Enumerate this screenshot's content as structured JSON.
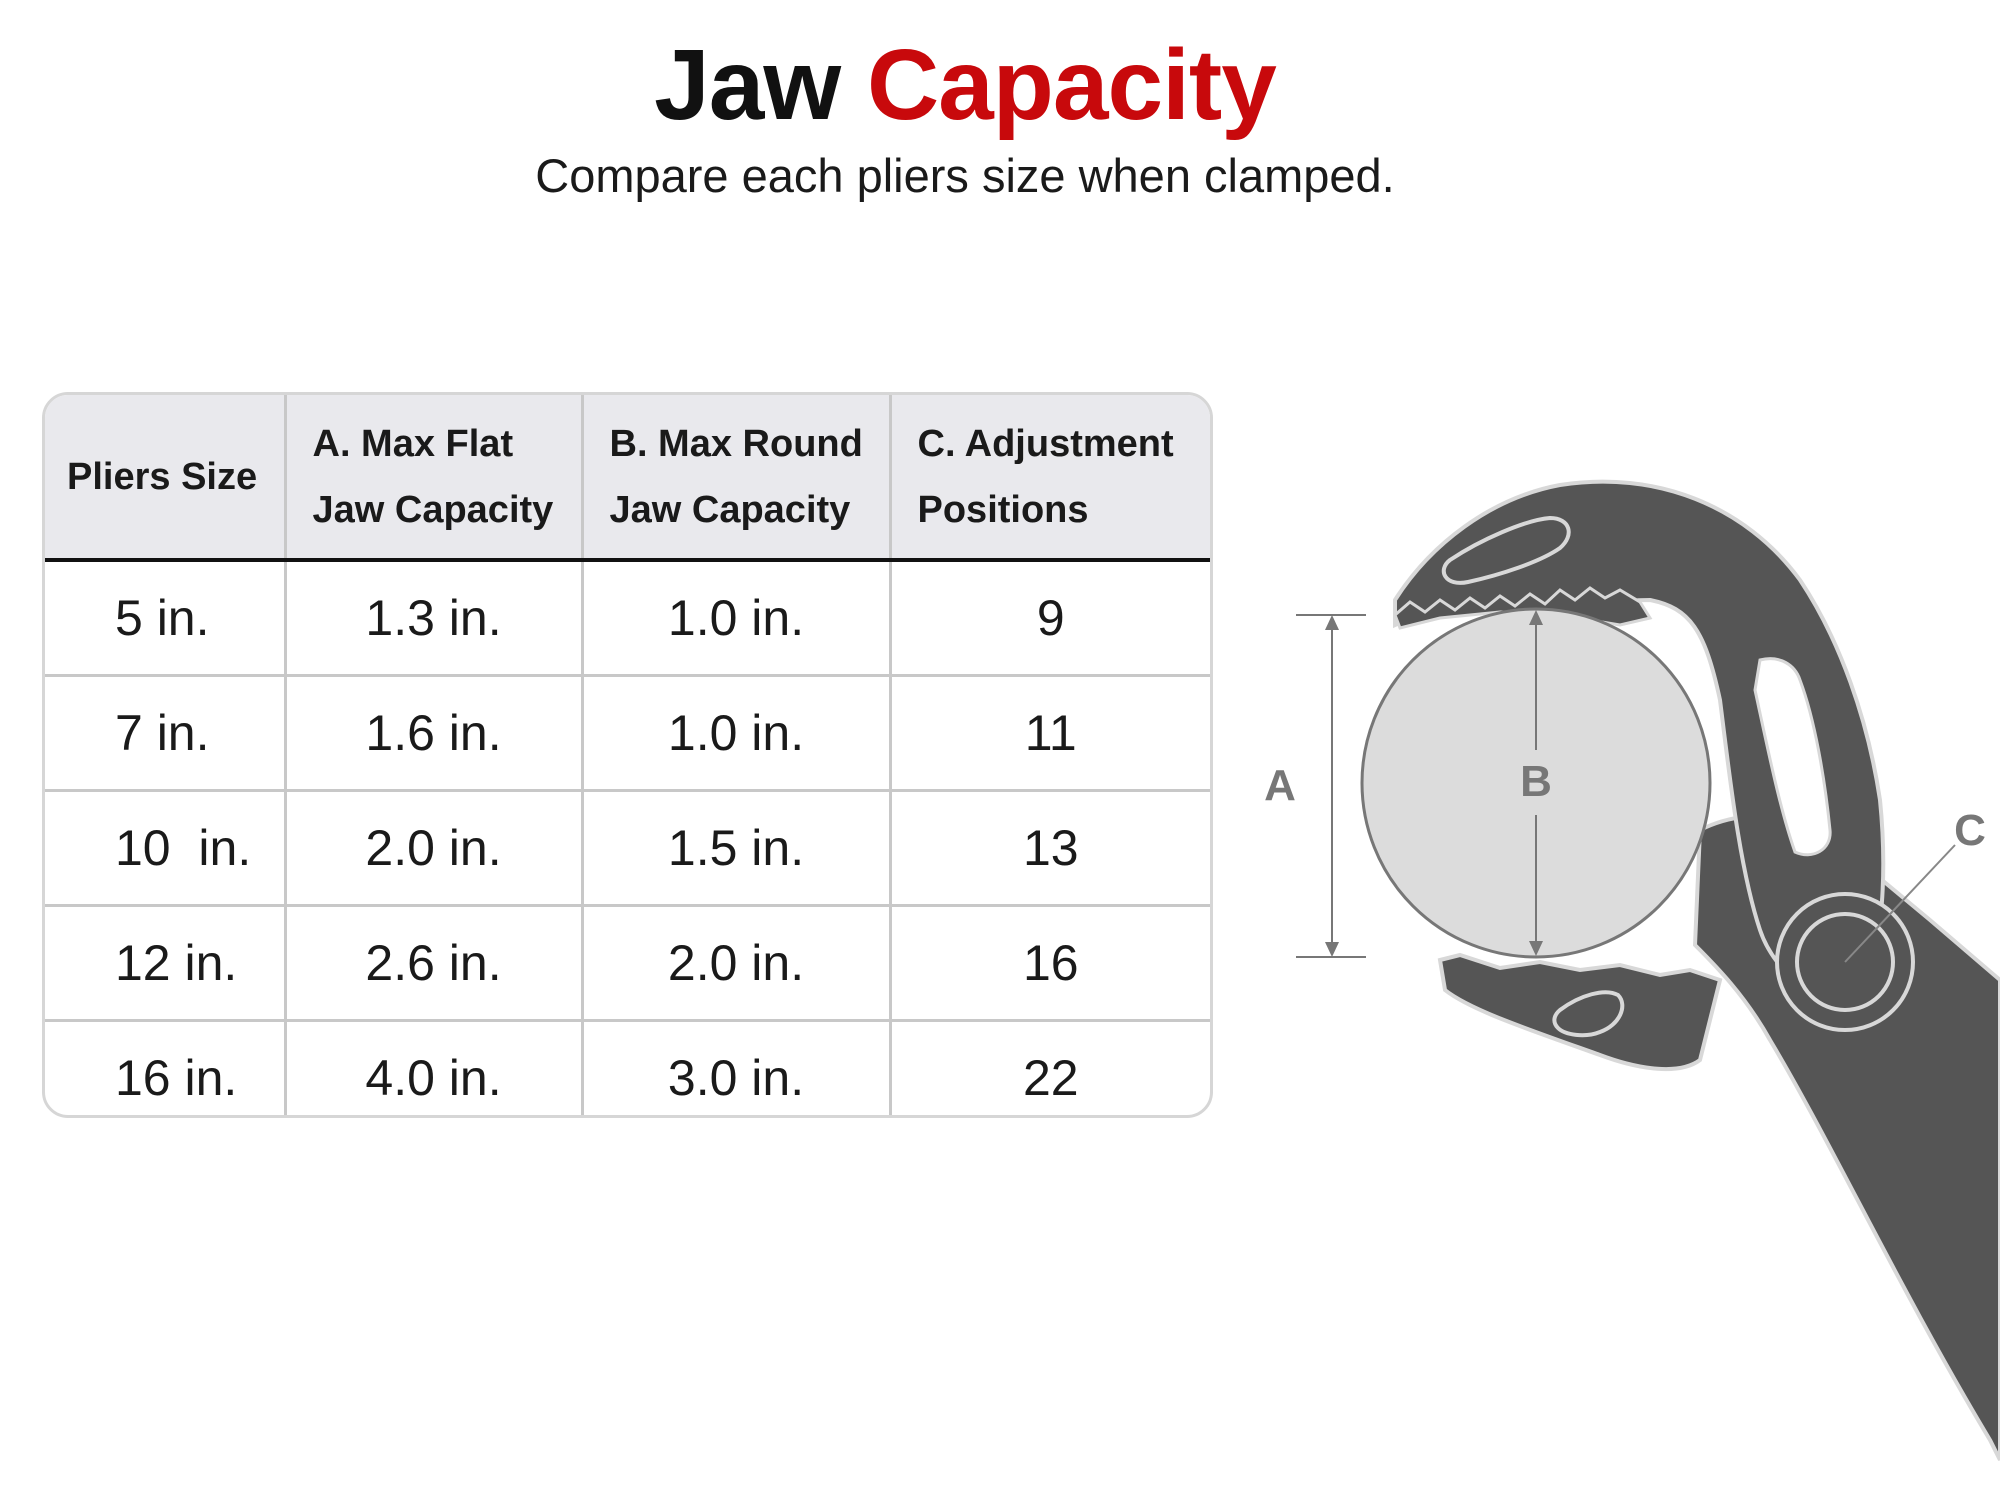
{
  "title": {
    "part1": "Jaw",
    "part2": "Capacity"
  },
  "subtitle": "Compare each pliers size when clamped.",
  "table": {
    "headers": [
      "Pliers Size",
      "A. Max Flat Jaw Capacity",
      "B. Max Round Jaw Capacity",
      "C. Adjustment Positions"
    ],
    "rows": [
      [
        "5 in.",
        "1.3 in.",
        "1.0 in.",
        "9"
      ],
      [
        "7 in.",
        "1.6 in.",
        "1.0 in.",
        "11"
      ],
      [
        "10  in.",
        "2.0 in.",
        "1.5 in.",
        "13"
      ],
      [
        "12 in.",
        "2.6 in.",
        "2.0 in.",
        "16"
      ],
      [
        "16 in.",
        "4.0 in.",
        "3.0 in.",
        "22"
      ]
    ]
  },
  "diagram": {
    "label_a": "A",
    "label_b": "B",
    "label_c": "C"
  },
  "colors": {
    "accent": "#c8090c",
    "tool": "#555555",
    "header_bg": "#e9e9ed"
  }
}
